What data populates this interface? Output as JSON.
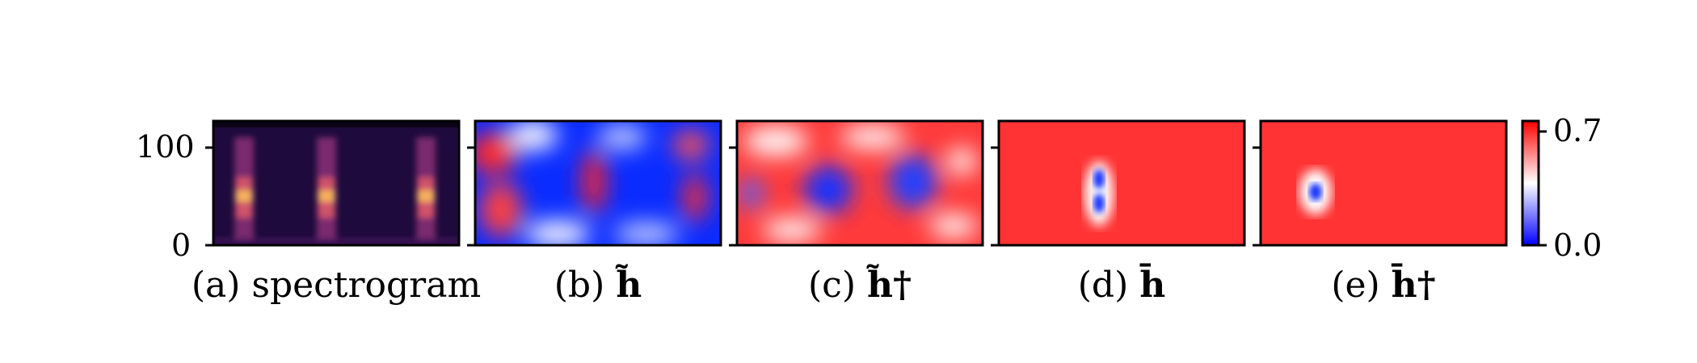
{
  "panels": [
    {
      "id": "a",
      "label": "(a) spectrogram",
      "prefix": "(a) ",
      "symbol": "spectrogram",
      "kind": "spectrogram"
    },
    {
      "id": "b",
      "label": "(b) h̃",
      "prefix": "(b) ",
      "symbol": "h̃",
      "kind": "noise-blue"
    },
    {
      "id": "c",
      "label": "(c) h̃†",
      "prefix": "(c) ",
      "symbol": "h̃†",
      "kind": "noise-red"
    },
    {
      "id": "d",
      "label": "(d) h̄",
      "prefix": "(d) ",
      "symbol": "h̄",
      "kind": "gauss-double"
    },
    {
      "id": "e",
      "label": "(e) h̄†",
      "prefix": "(e) ",
      "symbol": "h̄†",
      "kind": "gauss-single"
    }
  ],
  "y_axis": {
    "ticks": [
      "100",
      "0"
    ]
  },
  "colorbar": {
    "min_label": "0.0",
    "max_label": "0.7",
    "colors": {
      "low": "#0000ff",
      "mid": "#ffffff",
      "high": "#ff0000"
    }
  },
  "colors": {
    "spectrogram_bg": "#1e0a3c",
    "spectrogram_hot": "#f6b35a",
    "red_fill": "#ff3333",
    "blue_fill": "#0a2cff"
  },
  "chart_data": [
    {
      "type": "heatmap",
      "title": "(a) spectrogram",
      "ylim": [
        0,
        128
      ],
      "yticks": [
        0,
        100
      ],
      "pattern": "three vertical harmonic bursts"
    },
    {
      "type": "heatmap",
      "title": "(b) h̃",
      "clim": [
        0.0,
        0.7
      ],
      "pattern": "predominantly low (blue) random field"
    },
    {
      "type": "heatmap",
      "title": "(c) h̃†",
      "clim": [
        0.0,
        0.7
      ],
      "pattern": "predominantly high (red) random field"
    },
    {
      "type": "heatmap",
      "title": "(d) h̄",
      "clim": [
        0.0,
        0.7
      ],
      "pattern": "uniform high with two small low blobs near center-left"
    },
    {
      "type": "heatmap",
      "title": "(e) h̄†",
      "clim": [
        0.0,
        0.7
      ],
      "pattern": "uniform high with one small low blob left of center"
    }
  ]
}
